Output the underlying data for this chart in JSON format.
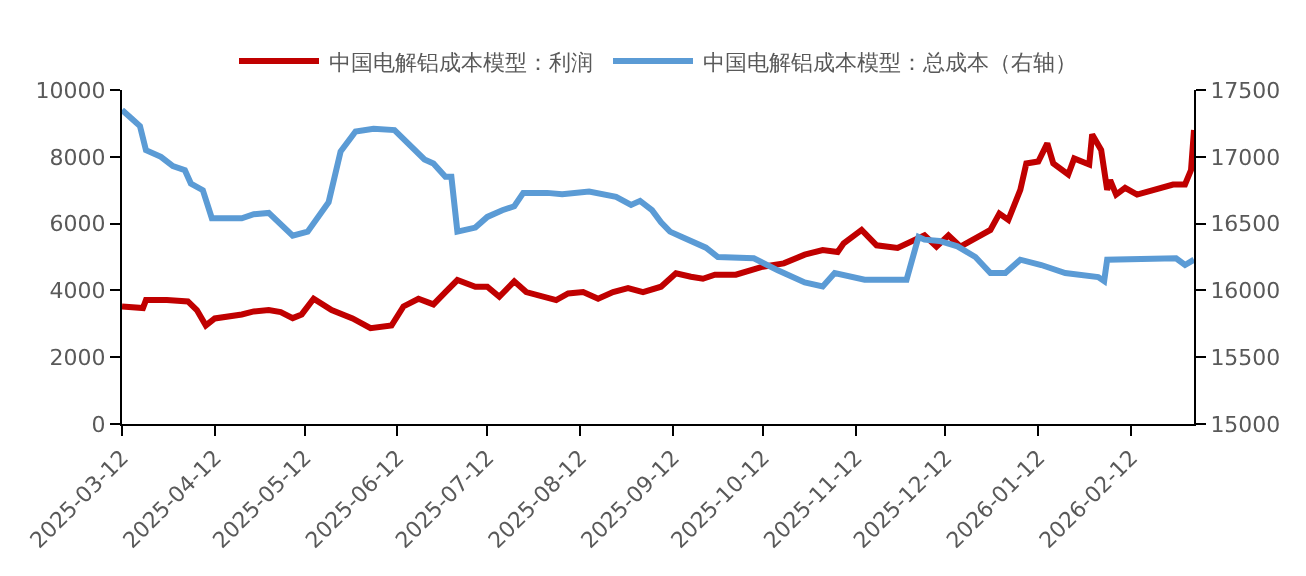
{
  "chart_data": {
    "type": "line",
    "legend": "top",
    "marker": "none",
    "line_style": "solid",
    "xlim": [
      "2025-03-12",
      "2026-03-05"
    ],
    "xticks": [
      {
        "value": "2025-03-12",
        "label": "2025-03-12"
      },
      {
        "value": "2025-04-12",
        "label": "2025-04-12"
      },
      {
        "value": "2025-05-12",
        "label": "2025-05-12"
      },
      {
        "value": "2025-06-12",
        "label": "2025-06-12"
      },
      {
        "value": "2025-07-12",
        "label": "2025-07-12"
      },
      {
        "value": "2025-08-12",
        "label": "2025-08-12"
      },
      {
        "value": "2025-09-12",
        "label": "2025-09-12"
      },
      {
        "value": "2025-10-12",
        "label": "2025-10-12"
      },
      {
        "value": "2025-11-12",
        "label": "2025-11-12"
      },
      {
        "value": "2025-12-12",
        "label": "2025-12-12"
      },
      {
        "value": "2026-01-12",
        "label": "2026-01-12"
      },
      {
        "value": "2026-02-12",
        "label": "2026-02-12"
      }
    ],
    "ylim": [
      0,
      10000
    ],
    "yticks": [
      0,
      2000,
      4000,
      6000,
      8000,
      10000
    ],
    "y2lim": [
      15000,
      17500
    ],
    "y2ticks": [
      15000,
      15500,
      16000,
      16500,
      17000,
      17500
    ],
    "series": [
      {
        "name": "中国电解铝成本模型：利润",
        "color": "#c00000",
        "x": [
          "2025-03-12",
          "2025-03-19",
          "2025-03-20",
          "2025-03-27",
          "2025-04-03",
          "2025-04-06",
          "2025-04-09",
          "2025-04-12",
          "2025-04-21",
          "2025-04-25",
          "2025-04-30",
          "2025-05-04",
          "2025-05-08",
          "2025-05-11",
          "2025-05-15",
          "2025-05-21",
          "2025-05-28",
          "2025-06-03",
          "2025-06-10",
          "2025-06-14",
          "2025-06-19",
          "2025-06-24",
          "2025-06-28",
          "2025-07-02",
          "2025-07-08",
          "2025-07-12",
          "2025-07-16",
          "2025-07-21",
          "2025-07-25",
          "2025-08-04",
          "2025-08-08",
          "2025-08-13",
          "2025-08-18",
          "2025-08-23",
          "2025-08-28",
          "2025-09-02",
          "2025-09-08",
          "2025-09-13",
          "2025-09-18",
          "2025-09-22",
          "2025-09-26",
          "2025-10-03",
          "2025-10-12",
          "2025-10-19",
          "2025-10-26",
          "2025-11-01",
          "2025-11-06",
          "2025-11-08",
          "2025-11-14",
          "2025-11-19",
          "2025-11-26",
          "2025-12-05",
          "2025-12-09",
          "2025-12-13",
          "2025-12-17",
          "2025-12-23",
          "2025-12-27",
          "2025-12-30",
          "2026-01-02",
          "2026-01-06",
          "2026-01-08",
          "2026-01-12",
          "2026-01-15",
          "2026-01-17",
          "2026-01-22",
          "2026-01-24",
          "2026-01-29",
          "2026-01-30",
          "2026-02-02",
          "2026-02-04",
          "2026-02-05",
          "2026-02-07",
          "2026-02-10",
          "2026-02-14",
          "2026-02-26",
          "2026-03-02",
          "2026-03-04",
          "2026-03-05"
        ],
        "values": [
          3520,
          3470,
          3710,
          3710,
          3670,
          3410,
          2950,
          3160,
          3280,
          3370,
          3410,
          3350,
          3170,
          3280,
          3750,
          3410,
          3160,
          2870,
          2950,
          3520,
          3750,
          3580,
          3950,
          4310,
          4110,
          4110,
          3810,
          4270,
          3950,
          3710,
          3910,
          3950,
          3750,
          3950,
          4070,
          3950,
          4110,
          4510,
          4410,
          4350,
          4470,
          4470,
          4710,
          4810,
          5070,
          5210,
          5150,
          5410,
          5810,
          5350,
          5270,
          5650,
          5310,
          5650,
          5310,
          5610,
          5810,
          6300,
          6110,
          7010,
          7800,
          7860,
          8400,
          7800,
          7470,
          7950,
          7770,
          8670,
          8200,
          7010,
          7300,
          6870,
          7070,
          6870,
          7170,
          7170,
          7600,
          8800
        ]
      },
      {
        "name": "中国电解铝成本模型：总成本（右轴）",
        "color": "#5b9bd5",
        "axis": "y2",
        "x": [
          "2025-03-12",
          "2025-03-15",
          "2025-03-18",
          "2025-03-20",
          "2025-03-25",
          "2025-03-29",
          "2025-04-02",
          "2025-04-04",
          "2025-04-08",
          "2025-04-11",
          "2025-04-21",
          "2025-04-25",
          "2025-04-30",
          "2025-05-08",
          "2025-05-13",
          "2025-05-20",
          "2025-05-24",
          "2025-05-29",
          "2025-06-04",
          "2025-06-11",
          "2025-06-21",
          "2025-06-24",
          "2025-06-28",
          "2025-06-30",
          "2025-07-02",
          "2025-07-08",
          "2025-07-12",
          "2025-07-17",
          "2025-07-21",
          "2025-07-24",
          "2025-08-01",
          "2025-08-06",
          "2025-08-15",
          "2025-08-24",
          "2025-08-29",
          "2025-09-01",
          "2025-09-05",
          "2025-09-08",
          "2025-09-11",
          "2025-09-15",
          "2025-09-23",
          "2025-09-27",
          "2025-10-09",
          "2025-10-17",
          "2025-10-26",
          "2025-11-01",
          "2025-11-05",
          "2025-11-15",
          "2025-11-29",
          "2025-12-03",
          "2025-12-05",
          "2025-12-10",
          "2025-12-16",
          "2025-12-22",
          "2025-12-27",
          "2026-01-01",
          "2026-01-06",
          "2026-01-13",
          "2026-01-21",
          "2026-02-01",
          "2026-02-03",
          "2026-02-04",
          "2026-02-27",
          "2026-03-02",
          "2026-03-05"
        ],
        "values": [
          17350,
          17290,
          17230,
          17050,
          17000,
          16930,
          16900,
          16800,
          16750,
          16540,
          16540,
          16570,
          16580,
          16410,
          16440,
          16660,
          17040,
          17190,
          17210,
          17200,
          16980,
          16950,
          16850,
          16850,
          16440,
          16470,
          16550,
          16600,
          16630,
          16730,
          16730,
          16720,
          16740,
          16700,
          16640,
          16670,
          16600,
          16510,
          16440,
          16400,
          16320,
          16250,
          16240,
          16150,
          16060,
          16030,
          16130,
          16080,
          16080,
          16400,
          16380,
          16370,
          16330,
          16250,
          16130,
          16130,
          16230,
          16190,
          16130,
          16100,
          16070,
          16230,
          16240,
          16190,
          16230
        ]
      }
    ]
  }
}
